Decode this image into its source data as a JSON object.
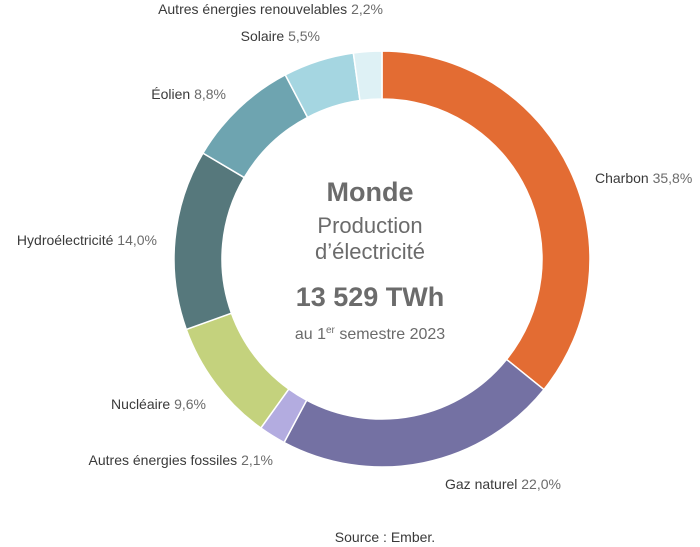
{
  "chart_data": {
    "type": "pie",
    "variant": "donut",
    "center": {
      "title": "Monde",
      "subtitle_line1": "Production",
      "subtitle_line2": "d’électricité",
      "total": "13 529 TWh",
      "period_prefix": "au 1",
      "period_sup": "er",
      "period_suffix": " semestre 2023"
    },
    "source": "Source :  Ember.",
    "slices": [
      {
        "name": "Charbon",
        "value": 35.8,
        "label": "35,8%",
        "color": "#e36c33"
      },
      {
        "name": "Gaz naturel",
        "value": 22.0,
        "label": "22,0%",
        "color": "#7471a3"
      },
      {
        "name": "Autres énergies fossiles",
        "value": 2.1,
        "label": "2,1%",
        "color": "#b3ace0"
      },
      {
        "name": "Nucléaire",
        "value": 9.6,
        "label": "9,6%",
        "color": "#c4d27d"
      },
      {
        "name": "Hydroélectricité",
        "value": 14.0,
        "label": "14,0%",
        "color": "#56787c"
      },
      {
        "name": "Éolien",
        "value": 8.8,
        "label": "8,8%",
        "color": "#6ea4b0"
      },
      {
        "name": "Solaire",
        "value": 5.5,
        "label": "5,5%",
        "color": "#a5d6e1"
      },
      {
        "name": "Autres énergies renouvelables",
        "value": 2.2,
        "label": "2,2%",
        "color": "#def1f5"
      }
    ]
  }
}
